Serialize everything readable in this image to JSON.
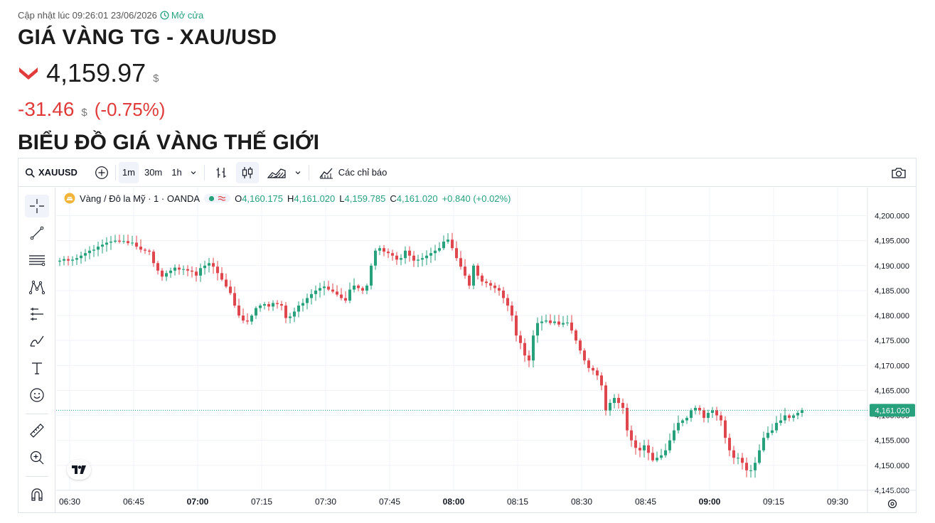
{
  "header": {
    "updated_text": "Cập nhật lúc 09:26:01 23/06/2026",
    "market_status": "Mở cửa",
    "title": "GIÁ VÀNG TG - XAU/USD",
    "price": "4,159.97",
    "unit": "$",
    "change": "-31.46",
    "change_pct": "(-0.75%)",
    "section_title": "BIỂU ĐỒ GIÁ VÀNG THẾ GIỚI",
    "down_color": "#e03a3a"
  },
  "toolbar": {
    "symbol": "XAUUSD",
    "intervals": [
      "1m",
      "30m",
      "1h"
    ],
    "active_interval": "1m",
    "indicators_label": "Các chỉ báo"
  },
  "legend": {
    "name": "Vàng / Đô la Mỹ · 1 · OANDA",
    "o_label": "O",
    "o": "4,160.175",
    "h_label": "H",
    "h": "4,161.020",
    "l_label": "L",
    "l": "4,159.785",
    "c_label": "C",
    "c": "4,161.020",
    "change": "+0.840 (+0.02%)"
  },
  "chart_data": {
    "type": "candlestick",
    "up_color": "#26a17b",
    "down_color": "#e0464e",
    "ylim": [
      4143,
      4201.5
    ],
    "yticks": [
      4145,
      4150,
      4155,
      4160,
      4165,
      4170,
      4175,
      4180,
      4185,
      4190,
      4195,
      4200
    ],
    "ytick_labels": [
      "4,145.000",
      "4,150.000",
      "4,155.000",
      "4,160.000",
      "4,165.000",
      "4,170.000",
      "4,175.000",
      "4,180.000",
      "4,185.000",
      "4,190.000",
      "4,195.000",
      "4,200.000"
    ],
    "xticks": [
      "06:30",
      "06:45",
      "07:00",
      "07:15",
      "07:30",
      "07:45",
      "08:00",
      "08:15",
      "08:30",
      "08:45",
      "09:00",
      "09:15",
      "09:30"
    ],
    "xticks_bold": [
      "07:00",
      "08:00",
      "09:00"
    ],
    "last_price": 4161.02,
    "last_price_label": "4,161.020",
    "close_series": [
      4191.0,
      4191.3,
      4191.0,
      4191.2,
      4191.5,
      4192.0,
      4192.5,
      4193.0,
      4193.2,
      4193.8,
      4194.2,
      4194.6,
      4194.8,
      4195.0,
      4194.8,
      4194.9,
      4194.5,
      4194.6,
      4193.8,
      4193.2,
      4193.0,
      4192.8,
      4190.5,
      4189.0,
      4187.8,
      4188.5,
      4189.0,
      4189.6,
      4189.2,
      4189.3,
      4189.0,
      4188.8,
      4188.0,
      4189.5,
      4190.0,
      4190.5,
      4189.8,
      4188.5,
      4187.2,
      4185.8,
      4184.5,
      4182.0,
      4180.0,
      4179.0,
      4178.8,
      4180.0,
      4181.5,
      4182.0,
      4182.3,
      4181.8,
      4182.5,
      4182.3,
      4182.0,
      4179.5,
      4179.8,
      4180.8,
      4182.0,
      4182.5,
      4183.5,
      4184.3,
      4185.0,
      4185.5,
      4185.8,
      4185.2,
      4184.8,
      4184.2,
      4183.5,
      4183.0,
      4185.2,
      4186.0,
      4185.5,
      4185.0,
      4186.0,
      4190.0,
      4193.0,
      4193.5,
      4192.8,
      4192.5,
      4192.0,
      4191.2,
      4191.5,
      4193.0,
      4192.0,
      4191.0,
      4191.2,
      4191.5,
      4192.0,
      4192.5,
      4193.0,
      4193.5,
      4194.8,
      4195.2,
      4193.5,
      4191.5,
      4189.8,
      4188.0,
      4186.0,
      4190.0,
      4188.0,
      4186.8,
      4186.5,
      4186.0,
      4185.5,
      4185.0,
      4183.5,
      4182.0,
      4180.0,
      4176.0,
      4174.5,
      4172.0,
      4171.0,
      4176.0,
      4178.5,
      4178.8,
      4179.0,
      4178.5,
      4178.8,
      4178.2,
      4178.5,
      4178.6,
      4177.0,
      4175.0,
      4173.0,
      4171.0,
      4169.5,
      4169.0,
      4168.0,
      4166.0,
      4161.0,
      4162.5,
      4163.5,
      4162.5,
      4161.5,
      4157.0,
      4155.0,
      4153.5,
      4153.0,
      4154.0,
      4152.5,
      4151.0,
      4151.5,
      4152.0,
      4153.0,
      4155.0,
      4157.0,
      4158.5,
      4159.0,
      4159.5,
      4161.0,
      4161.5,
      4161.0,
      4159.5,
      4160.5,
      4161.0,
      4160.0,
      4159.0,
      4155.5,
      4153.0,
      4151.5,
      4151.5,
      4150.5,
      4149.0,
      4149.0,
      4150.5,
      4153.0,
      4155.5,
      4156.5,
      4157.0,
      4158.5,
      4159.0,
      4160.0,
      4159.5,
      4160.0,
      4160.5,
      4161.02
    ]
  }
}
